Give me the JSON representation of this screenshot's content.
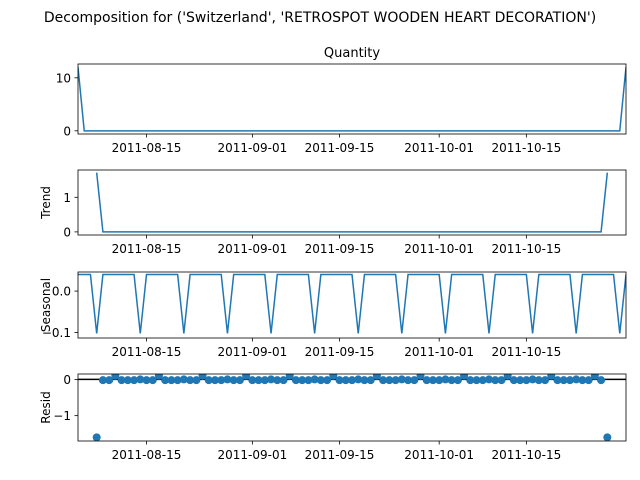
{
  "figure": {
    "suptitle": "Decomposition for ('Switzerland', 'RETROSPOT WOODEN HEART DECORATION')"
  },
  "x_tick_labels": [
    "2011-08-15",
    "2011-09-01",
    "2011-09-15",
    "2011-10-01",
    "2011-10-15"
  ],
  "colors": {
    "series": "#1f77b4",
    "zero_line": "#000000"
  },
  "chart_data": [
    {
      "type": "line",
      "panel": "observed",
      "title": "Quantity",
      "ylabel": "",
      "x_range": [
        "2011-08-04",
        "2011-10-31"
      ],
      "ylim": [
        -0.6,
        12.6
      ],
      "yticks": [
        0,
        10
      ],
      "y_tick_labels": [
        "0",
        "10"
      ],
      "series": [
        {
          "x": [
            "2011-08-04",
            "2011-08-05",
            "2011-10-30",
            "2011-10-31"
          ],
          "y": [
            12,
            0,
            0,
            12
          ]
        }
      ]
    },
    {
      "type": "line",
      "panel": "trend",
      "title": "",
      "ylabel": "Trend",
      "x_range": [
        "2011-08-04",
        "2011-10-31"
      ],
      "ylim": [
        -0.09,
        1.79
      ],
      "yticks": [
        0,
        1
      ],
      "y_tick_labels": [
        "0",
        "1"
      ],
      "series": [
        {
          "x": [
            "2011-08-07",
            "2011-08-08",
            "2011-10-27",
            "2011-10-28"
          ],
          "y": [
            1.714,
            0,
            0,
            1.714
          ]
        }
      ]
    },
    {
      "type": "line",
      "panel": "seasonal",
      "title": "",
      "ylabel": "Seasonal",
      "x_range": [
        "2011-08-04",
        "2011-10-31"
      ],
      "ylim": [
        -0.113,
        0.046
      ],
      "yticks": [
        -0.1,
        0.0
      ],
      "y_tick_labels": [
        "−0.1",
        "0.0"
      ],
      "period_days": 7,
      "pattern": [
        0.04,
        0.04,
        0.04,
        -0.102,
        0.04,
        0.04,
        0.04
      ],
      "series_start": "2011-08-04",
      "series_end": "2011-10-31"
    },
    {
      "type": "scatter",
      "panel": "resid",
      "title": "",
      "ylabel": "Resid",
      "x_range": [
        "2011-08-04",
        "2011-10-31"
      ],
      "ylim": [
        -1.7,
        0.15
      ],
      "yticks": [
        -1,
        0
      ],
      "y_tick_labels": [
        "−1",
        "0"
      ],
      "zero_line": true,
      "pattern": [
        0.0,
        -0.02,
        -0.02,
        0.1,
        -0.02,
        -0.02,
        -0.02
      ],
      "points_start": "2011-08-07",
      "points_end": "2011-10-28",
      "outliers": [
        {
          "x": "2011-08-07",
          "y": -1.6
        },
        {
          "x": "2011-10-28",
          "y": -1.6
        }
      ]
    }
  ]
}
